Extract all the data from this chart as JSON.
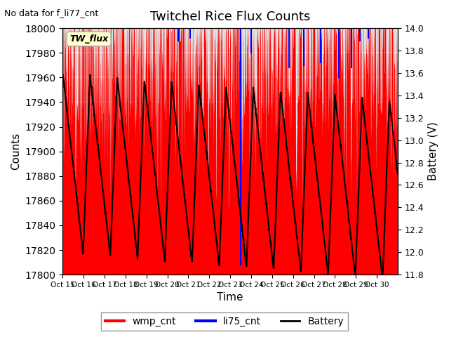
{
  "title": "Twitchel Rice Flux Counts",
  "subtitle": "No data for f_li77_cnt",
  "xlabel": "Time",
  "ylabel_left": "Counts",
  "ylabel_right": "Battery (V)",
  "ylim_left": [
    17800,
    18000
  ],
  "ylim_right": [
    11.8,
    14.0
  ],
  "yticks_left": [
    17800,
    17820,
    17840,
    17860,
    17880,
    17900,
    17920,
    17940,
    17960,
    17980,
    18000
  ],
  "yticks_right": [
    11.8,
    12.0,
    12.2,
    12.4,
    12.6,
    12.8,
    13.0,
    13.2,
    13.4,
    13.6,
    13.8,
    14.0
  ],
  "xtick_labels": [
    "Oct 15",
    "Oct 16",
    "Oct 17",
    "Oct 18",
    "Oct 19",
    "Oct 20",
    "Oct 21",
    "Oct 22",
    "Oct 23",
    "Oct 24",
    "Oct 25",
    "Oct 26",
    "Oct 27",
    "Oct 28",
    "Oct 29",
    "Oct 30"
  ],
  "legend_entries": [
    "wmp_cnt",
    "li75_cnt",
    "Battery"
  ],
  "legend_colors": [
    "red",
    "blue",
    "black"
  ],
  "tw_flux_label": "TW_flux",
  "tw_flux_color": "#ffffcc",
  "tw_flux_edge": "#aaaaaa",
  "background_color": "#e0e0e0",
  "grid_color": "white",
  "figsize": [
    6.4,
    4.8
  ],
  "dpi": 100
}
